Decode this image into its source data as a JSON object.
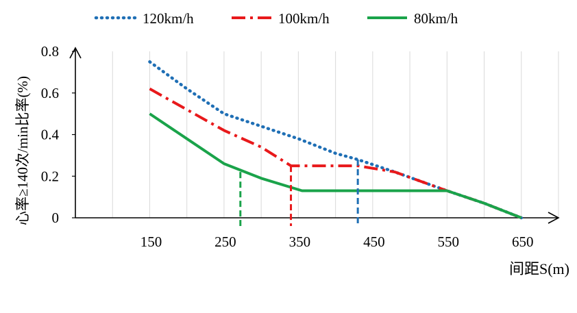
{
  "chart_data": {
    "type": "line",
    "title": "",
    "xlabel": "间距S(m)",
    "ylabel": "心率≥140次/min比率(%)",
    "xlim": [
      50,
      700
    ],
    "ylim": [
      0,
      0.8
    ],
    "x_ticks": [
      "150",
      "250",
      "350",
      "450",
      "550",
      "650"
    ],
    "x_tick_values": [
      150,
      250,
      350,
      450,
      550,
      650
    ],
    "y_ticks": [
      "0",
      "0.2",
      "0.4",
      "0.6",
      "0.8"
    ],
    "y_tick_values": [
      0,
      0.2,
      0.4,
      0.6,
      0.8
    ],
    "grid": "vertical",
    "legend_position": "top",
    "series": [
      {
        "name": "120km/h",
        "color": "#1f6fb5",
        "style": "dotted",
        "x": [
          150,
          200,
          250,
          300,
          350,
          400,
          430,
          480,
          550,
          600,
          650
        ],
        "y": [
          0.75,
          0.62,
          0.5,
          0.44,
          0.38,
          0.31,
          0.28,
          0.22,
          0.13,
          0.07,
          0.0
        ]
      },
      {
        "name": "100km/h",
        "color": "#e8191b",
        "style": "dashdot",
        "x": [
          150,
          200,
          250,
          300,
          340,
          380,
          430,
          480,
          550,
          600,
          650
        ],
        "y": [
          0.62,
          0.52,
          0.42,
          0.34,
          0.25,
          0.25,
          0.25,
          0.22,
          0.13,
          0.07,
          0.0
        ]
      },
      {
        "name": "80km/h",
        "color": "#1aa34a",
        "style": "solid",
        "x": [
          150,
          200,
          250,
          300,
          355,
          400,
          450,
          550,
          600,
          650
        ],
        "y": [
          0.5,
          0.38,
          0.26,
          0.19,
          0.13,
          0.13,
          0.13,
          0.13,
          0.07,
          0.0
        ]
      }
    ],
    "markers": [
      {
        "series": "80km/h",
        "x": 272,
        "y": 0.22
      },
      {
        "series": "100km/h",
        "x": 340,
        "y": 0.25
      },
      {
        "series": "120km/h",
        "x": 430,
        "y": 0.28
      }
    ]
  }
}
